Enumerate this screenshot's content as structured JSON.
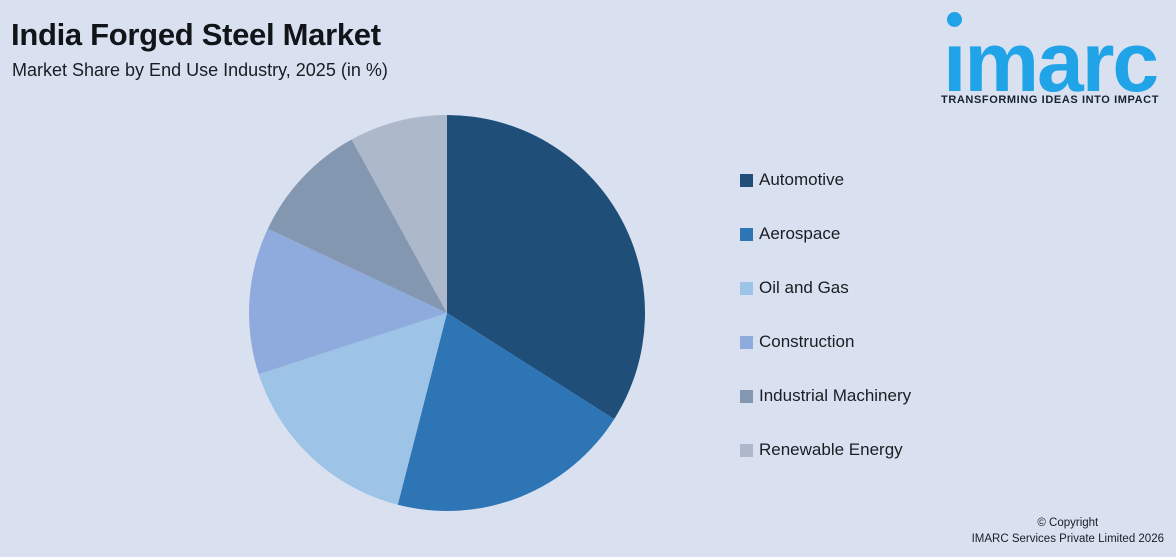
{
  "background_color": "#D9E1F1",
  "header": {
    "title": "India Forged Steel Market",
    "subtitle": "Market Share by End Use Industry, 2025 (in %)"
  },
  "logo": {
    "brand": "imarc",
    "tagline": "TRANSFORMING IDEAS INTO IMPACT",
    "brand_color": "#21A3E8",
    "tagline_color": "#16222e"
  },
  "chart_data": {
    "type": "pie",
    "title": "India Forged Steel Market",
    "subtitle": "Market Share by End Use Industry, 2025 (in %)",
    "unit": "%",
    "categories": [
      "Automotive",
      "Aerospace",
      "Oil and Gas",
      "Construction",
      "Industrial Machinery",
      "Renewable Energy"
    ],
    "values": [
      34,
      20,
      16,
      12,
      10,
      8
    ],
    "colors": [
      "#1F4E79",
      "#2E75B6",
      "#9DC3E6",
      "#8FAADC",
      "#8497B0",
      "#ADB9CA"
    ],
    "start_angle_deg": 0,
    "direction": "clockwise",
    "legend_position": "right",
    "data_labels": false
  },
  "footer": {
    "copyright_line1": "© Copyright",
    "copyright_line2": "IMARC Services Private Limited 2026"
  }
}
